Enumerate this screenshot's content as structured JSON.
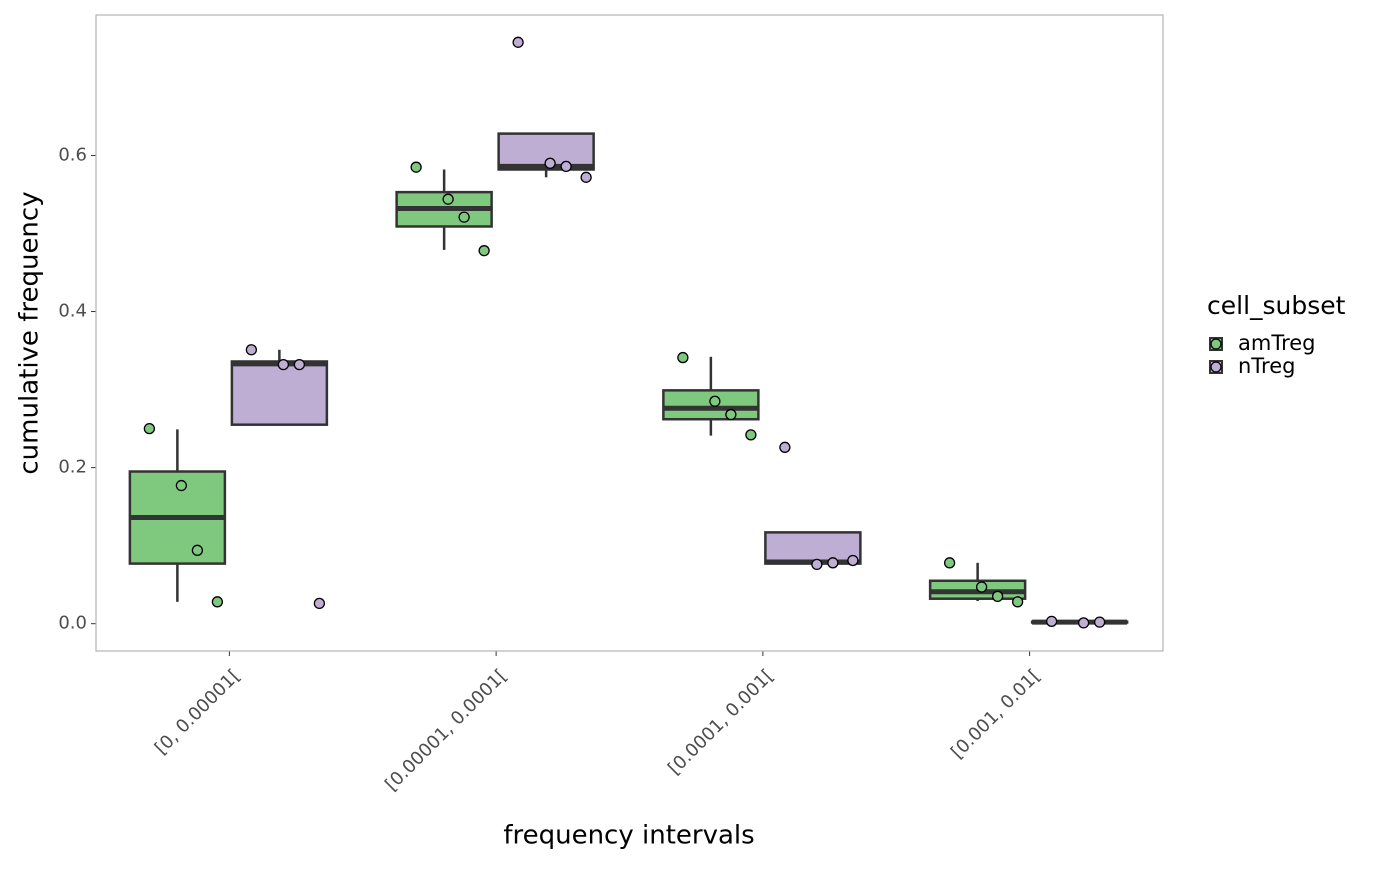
{
  "chart_data": {
    "type": "box",
    "xlabel": "frequency intervals",
    "ylabel": "cumulative frequency",
    "categories": [
      "[0, 0.00001[",
      "[0.00001, 0.0001[",
      "[0.0001, 0.001[",
      "[0.001, 0.01["
    ],
    "legend_title": "cell_subset",
    "legend_position": "right",
    "grid": true,
    "ylim": [
      -0.035,
      0.78
    ],
    "yticks": [
      {
        "value": 0,
        "label": "0.0"
      },
      0.2,
      0.4,
      0.6
    ],
    "series": [
      {
        "name": "amTreg",
        "color": "#7fc97f",
        "boxes": [
          {
            "low": 0.028,
            "q1": 0.077,
            "median": 0.136,
            "q3": 0.195,
            "high": 0.249,
            "points": [
              0.25,
              0.177,
              0.094,
              0.028
            ]
          },
          {
            "low": 0.479,
            "q1": 0.509,
            "median": 0.532,
            "q3": 0.553,
            "high": 0.582,
            "points": [
              0.585,
              0.544,
              0.521,
              0.478
            ]
          },
          {
            "low": 0.241,
            "q1": 0.262,
            "median": 0.276,
            "q3": 0.299,
            "high": 0.342,
            "points": [
              0.341,
              0.285,
              0.268,
              0.242
            ]
          },
          {
            "low": 0.029,
            "q1": 0.032,
            "median": 0.041,
            "q3": 0.055,
            "high": 0.078,
            "points": [
              0.078,
              0.047,
              0.035,
              0.028
            ]
          }
        ]
      },
      {
        "name": "nTreg",
        "color": "#beaed4",
        "boxes": [
          {
            "low": 0.255,
            "q1": 0.255,
            "median": 0.333,
            "q3": 0.336,
            "high": 0.351,
            "points": [
              0.351,
              0.332,
              0.332,
              0.026
            ]
          },
          {
            "low": 0.572,
            "q1": 0.582,
            "median": 0.586,
            "q3": 0.628,
            "high": 0.628,
            "points": [
              0.745,
              0.59,
              0.586,
              0.572
            ]
          },
          {
            "low": 0.075,
            "q1": 0.077,
            "median": 0.079,
            "q3": 0.117,
            "high": 0.117,
            "points": [
              0.226,
              0.076,
              0.078,
              0.081
            ]
          },
          {
            "low": 0.001,
            "q1": 0.0015,
            "median": 0.002,
            "q3": 0.0025,
            "high": 0.003,
            "points": [
              0.003,
              0.001,
              0.002
            ]
          }
        ]
      }
    ]
  }
}
